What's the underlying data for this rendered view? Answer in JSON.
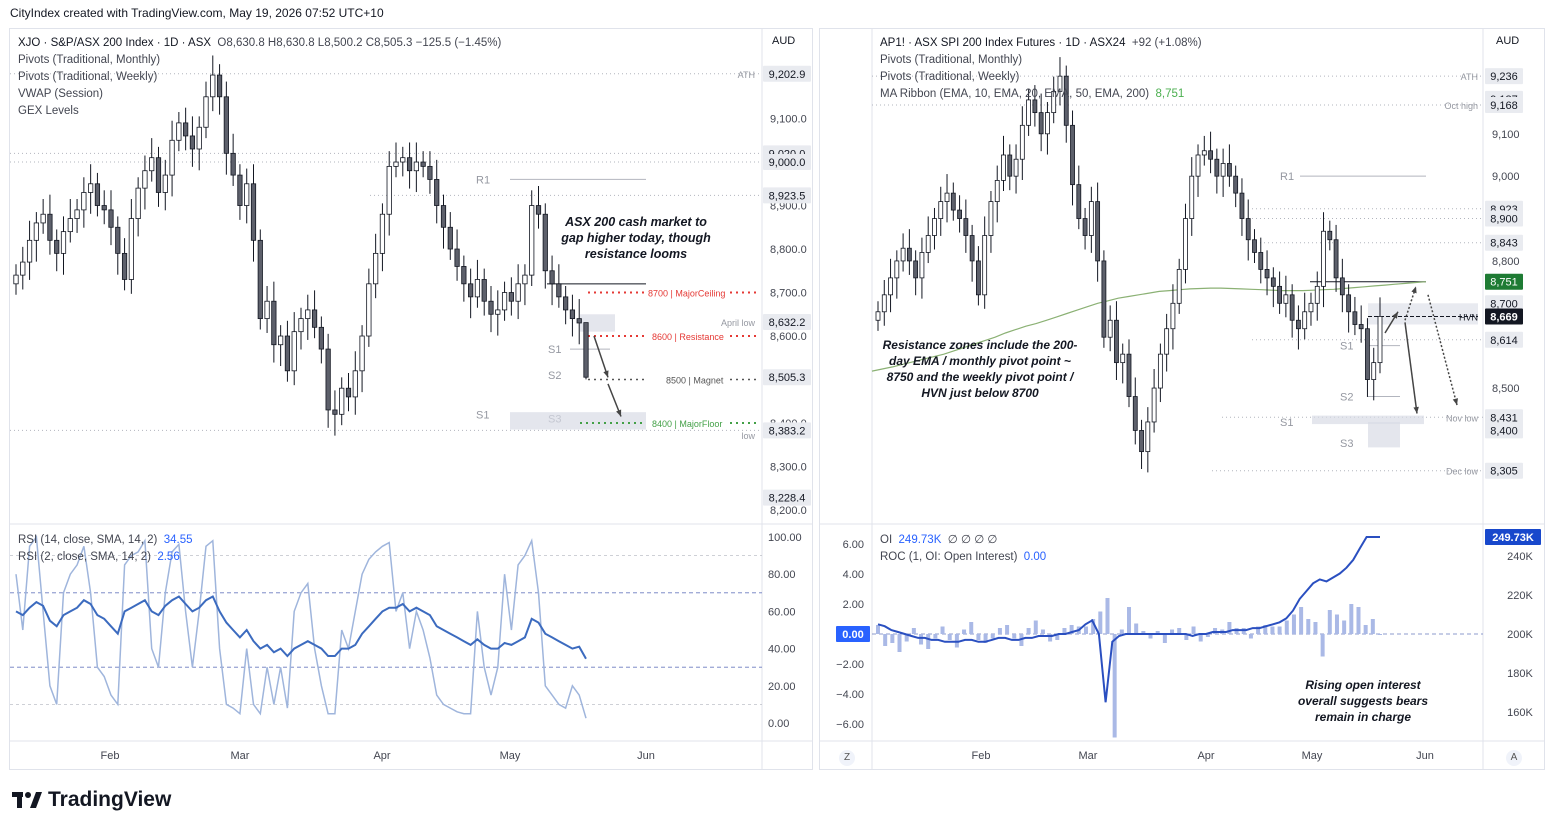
{
  "header": {
    "credit": "CityIndex created with TradingView.com, May 19, 2026 07:52 UTC+10"
  },
  "brand": {
    "name": "TradingView"
  },
  "bottom_buttons": {
    "zoom": "Z",
    "auto": "A"
  },
  "left": {
    "currency": "AUD",
    "legend": {
      "symbol": "XJO · S&P/ASX 200 Index · 1D · ASX",
      "ohlc": "O8,630.8  H8,630.8  L8,500.2  C8,505.3  −125.5 (−1.45%)",
      "lines": [
        "Pivots (Traditional, Monthly)",
        "Pivots (Traditional, Weekly)",
        "VWAP (Session)",
        "GEX Levels"
      ]
    },
    "rsi_legend": {
      "rsi14": "RSI (14, close, SMA, 14, 2)",
      "rsi14_val": "34.55",
      "rsi2": "RSI (2, close, SMA, 14, 2)",
      "rsi2_val": "2.56"
    },
    "price_ticks": [
      "9,100.0",
      "8,900.0",
      "8,800.0",
      "8,700.0",
      "8,600.0",
      "8,400.0",
      "8,300.0",
      "8,200.0"
    ],
    "price_badges": [
      "9,202.9",
      "9,020.0",
      "9,000.0",
      "8,923.5",
      "8,632.2",
      "8,505.3",
      "8,383.2",
      "8,228.4"
    ],
    "rsi_ticks": [
      "100.00",
      "80.00",
      "60.00",
      "40.00",
      "20.00",
      "0.00"
    ],
    "x_ticks": [
      "Feb",
      "Mar",
      "Apr",
      "May",
      "Jun"
    ],
    "labels": {
      "ath": "ATH",
      "r1": "R1",
      "s1w": "S1",
      "s2w": "S2",
      "s1m": "S1",
      "s3w": "S3",
      "april_low": "April low",
      "low": "low",
      "gex_ceiling": "8700 | MajorCeiling",
      "gex_resistance": "8600 | Resistance",
      "gex_magnet": "8500 | Magnet",
      "gex_floor": "8400 | MajorFloor"
    },
    "annotation": [
      "ASX 200 cash market to",
      "gap higher today, though",
      "resistance looms"
    ]
  },
  "right": {
    "currency": "AUD",
    "legend": {
      "symbol": "AP1! · ASX SPI 200 Index Futures · 1D · ASX24",
      "change": "+92 (+1.08%)",
      "lines": [
        "Pivots (Traditional, Monthly)",
        "Pivots (Traditional, Weekly)"
      ],
      "ma": "MA Ribbon (EMA, 10, EMA, 20, EMA, 50, EMA, 200)",
      "ma_val": "8,751"
    },
    "oi_legend": {
      "oi": "OI",
      "oi_val": "249.73K",
      "oi_dots": "∅ ∅ ∅ ∅",
      "roc": "ROC (1, OI: Open Interest)",
      "roc_val": "0.00"
    },
    "price_ticks": [
      "9,100",
      "9,000",
      "8,800",
      "8,615",
      "8,500"
    ],
    "price_badges": [
      "9,236",
      "9,187",
      "9,168",
      "8,923",
      "8,900",
      "8,843",
      "8,751",
      "8,700",
      "8,669",
      "8,614",
      "8,431",
      "8,400",
      "8,305"
    ],
    "oi_ticks": [
      "240K",
      "220K",
      "200K",
      "180K",
      "160K"
    ],
    "oi_badge": "249.73K",
    "roc_ticks": [
      "6.00",
      "4.00",
      "2.00",
      "0.00",
      "−2.00",
      "−4.00",
      "−6.00"
    ],
    "roc_zero_badge": "0.00",
    "x_ticks": [
      "Feb",
      "Mar",
      "Apr",
      "May",
      "Jun"
    ],
    "labels": {
      "ath": "ATH",
      "oct_high": "Oct high",
      "r1": "R1",
      "hvn": "HVN",
      "s1w": "S1",
      "s2w": "S2",
      "s1m": "S1",
      "s3m": "S3",
      "nov_low": "Nov low",
      "dec_low": "Dec low"
    },
    "annotation": [
      "Resistance zones include the 200-",
      "day EMA / monthly pivot point ~",
      "8750 and the weekly pivot point /",
      "HVN just below 8700"
    ],
    "oi_annotation": [
      "Rising open interest",
      "overall suggests bears",
      "remain in charge"
    ]
  },
  "colors": {
    "candle": "#131722",
    "rsi14": "#3c6bbf",
    "rsi2": "#9fb5dc",
    "oi_line": "#2a4fc0",
    "roc_bar": "#aab9e6",
    "ema200": "#8bb174",
    "gex_ceiling": "#e53935",
    "gex_floor": "#43a047",
    "badge_dark": "#e9ebf0",
    "badge_green": "#1e7b34",
    "badge_blue": "#2962ff"
  },
  "chart_data": [
    {
      "type": "candlestick",
      "title": "XJO · S&P/ASX 200 Index · 1D",
      "ylim": [
        8200,
        9230
      ],
      "last": {
        "open": 8630.8,
        "high": 8630.8,
        "low": 8500.2,
        "close": 8505.3
      },
      "closes": [
        8740,
        8770,
        8820,
        8860,
        8880,
        8820,
        8790,
        8840,
        8870,
        8890,
        8930,
        8950,
        8900,
        8890,
        8850,
        8790,
        8730,
        8870,
        8940,
        8980,
        9010,
        8930,
        8970,
        9050,
        9090,
        9060,
        9030,
        9080,
        9150,
        9200,
        9150,
        9020,
        8970,
        8900,
        8950,
        8820,
        8640,
        8680,
        8580,
        8600,
        8520,
        8610,
        8640,
        8660,
        8620,
        8570,
        8430,
        8420,
        8480,
        8460,
        8520,
        8600,
        8720,
        8790,
        8880,
        8990,
        9000,
        9010,
        8980,
        9000,
        8990,
        8960,
        8900,
        8850,
        8800,
        8760,
        8720,
        8690,
        8730,
        8680,
        8650,
        8660,
        8700,
        8680,
        8720,
        8740,
        8900,
        8880,
        8750,
        8720,
        8690,
        8660,
        8640,
        8630,
        8505.3
      ],
      "rsi14": [
        60,
        58,
        62,
        65,
        63,
        55,
        52,
        58,
        60,
        62,
        66,
        64,
        58,
        56,
        52,
        48,
        60,
        62,
        64,
        66,
        60,
        58,
        63,
        66,
        68,
        64,
        60,
        62,
        66,
        68,
        60,
        54,
        50,
        46,
        50,
        44,
        40,
        42,
        38,
        40,
        36,
        40,
        42,
        44,
        42,
        40,
        36,
        36,
        40,
        40,
        42,
        48,
        52,
        56,
        60,
        62,
        62,
        64,
        60,
        62,
        60,
        58,
        52,
        50,
        48,
        46,
        44,
        42,
        45,
        42,
        40,
        40,
        43,
        42,
        44,
        46,
        56,
        54,
        48,
        46,
        44,
        42,
        40,
        41,
        34.55
      ],
      "rsi2": [
        80,
        50,
        95,
        100,
        60,
        20,
        10,
        70,
        80,
        85,
        95,
        70,
        30,
        25,
        15,
        10,
        85,
        90,
        92,
        98,
        40,
        30,
        70,
        92,
        96,
        60,
        30,
        60,
        95,
        98,
        40,
        10,
        8,
        5,
        40,
        10,
        5,
        30,
        10,
        30,
        8,
        60,
        70,
        75,
        40,
        20,
        5,
        5,
        50,
        40,
        60,
        80,
        88,
        92,
        95,
        97,
        60,
        70,
        40,
        60,
        50,
        35,
        15,
        10,
        8,
        6,
        5,
        5,
        60,
        30,
        15,
        30,
        80,
        50,
        85,
        90,
        98,
        70,
        20,
        15,
        10,
        8,
        20,
        15,
        2.56
      ]
    },
    {
      "type": "candlestick",
      "title": "AP1! · ASX SPI 200 Index Futures · 1D",
      "ylim": [
        8250,
        9260
      ],
      "closes": [
        8680,
        8720,
        8760,
        8800,
        8830,
        8800,
        8760,
        8820,
        8860,
        8900,
        8940,
        8960,
        8920,
        8900,
        8860,
        8800,
        8720,
        8860,
        8940,
        8990,
        9050,
        9000,
        9040,
        9120,
        9180,
        9150,
        9100,
        9150,
        9200,
        9236,
        9120,
        8980,
        8900,
        8860,
        8940,
        8800,
        8620,
        8660,
        8560,
        8580,
        8480,
        8400,
        8350,
        8420,
        8500,
        8580,
        8640,
        8700,
        8780,
        8900,
        9000,
        9050,
        9060,
        9040,
        9000,
        9030,
        9000,
        8960,
        8900,
        8850,
        8820,
        8780,
        8760,
        8740,
        8700,
        8720,
        8660,
        8640,
        8680,
        8700,
        8740,
        8870,
        8850,
        8760,
        8720,
        8680,
        8650,
        8640,
        8520,
        8560,
        8669
      ],
      "oi_thousands": [
        205,
        204,
        202,
        201,
        200,
        199,
        198,
        198,
        197,
        197,
        196,
        196,
        196,
        197,
        197,
        196,
        196,
        197,
        198,
        198,
        197,
        197,
        198,
        198,
        199,
        199,
        199,
        200,
        200,
        201,
        202,
        205,
        207,
        200,
        165,
        196,
        199,
        200,
        200,
        200,
        200,
        200,
        200,
        200,
        200,
        200,
        200,
        199,
        200,
        200,
        201,
        201,
        201,
        202,
        202,
        202,
        203,
        203,
        204,
        205,
        206,
        208,
        212,
        218,
        222,
        226,
        228,
        227,
        229,
        231,
        234,
        238,
        244,
        249.73,
        249.73,
        249.73
      ],
      "roc": [
        0.6,
        -0.8,
        -0.6,
        -1.2,
        -0.5,
        0.4,
        -0.7,
        -1.0,
        -0.3,
        0.5,
        -0.4,
        -0.9,
        0.3,
        0.8,
        -0.4,
        -0.6,
        -0.3,
        0.4,
        0.6,
        -0.3,
        -0.8,
        0.4,
        0.9,
        0.3,
        -0.5,
        -0.4,
        0.4,
        0.6,
        0.5,
        0.5,
        1.0,
        1.5,
        2.4,
        -6.9,
        0.3,
        1.8,
        0.7,
        0.2,
        -0.3,
        0.2,
        -0.6,
        0.3,
        0.4,
        -0.4,
        0.5,
        -0.5,
        -0.2,
        0.4,
        0.3,
        0.8,
        0.4,
        0.4,
        -0.3,
        0.5,
        0.6,
        0.5,
        0.5,
        0.9,
        1.3,
        1.8,
        1.0,
        0.8,
        -1.5,
        1.6,
        1.3,
        0.9,
        2.0,
        1.8,
        0.6,
        1.0,
        0.0
      ],
      "ema200": [
        8540,
        8545,
        8550,
        8556,
        8562,
        8568,
        8574,
        8580,
        8588,
        8596,
        8604,
        8612,
        8620,
        8630,
        8638,
        8646,
        8652,
        8660,
        8668,
        8676,
        8684,
        8692,
        8700,
        8706,
        8712,
        8716,
        8720,
        8724,
        8728,
        8730,
        8732,
        8734,
        8735,
        8736,
        8736,
        8735,
        8734,
        8733,
        8732,
        8731,
        8730,
        8730,
        8730,
        8731,
        8732,
        8733,
        8735,
        8737,
        8739,
        8741,
        8743,
        8745,
        8747,
        8749,
        8751
      ]
    }
  ]
}
